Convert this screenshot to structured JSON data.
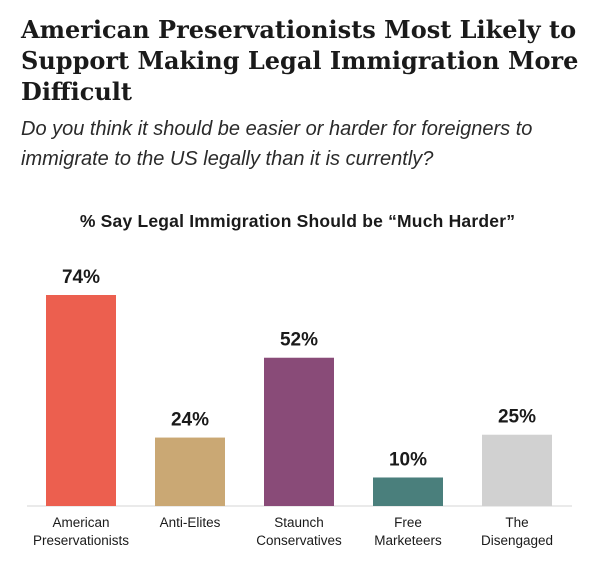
{
  "title": "American Preservationists Most Likely to Support Making Legal Immigration More Difficult",
  "subtitle": "Do you think it should be easier or harder for foreigners to immigrate to the US legally than it is currently?",
  "chart_data": {
    "type": "bar",
    "title": "% Say Legal Immigration Should be “Much Harder”",
    "categories": [
      [
        "American",
        "Preservationists"
      ],
      [
        "Anti-Elites"
      ],
      [
        "Staunch",
        "Conservatives"
      ],
      [
        "Free",
        "Marketeers"
      ],
      [
        "The",
        "Disengaged"
      ]
    ],
    "values": [
      74,
      24,
      52,
      10,
      25
    ],
    "value_labels": [
      "74%",
      "24%",
      "52%",
      "10%",
      "25%"
    ],
    "colors": [
      "#ec5f4f",
      "#caa874",
      "#894b78",
      "#4a7f7c",
      "#d1d1d1"
    ],
    "xlabel": "",
    "ylabel": "",
    "ylim": [
      0,
      74
    ],
    "grid": false,
    "legend": "none"
  }
}
